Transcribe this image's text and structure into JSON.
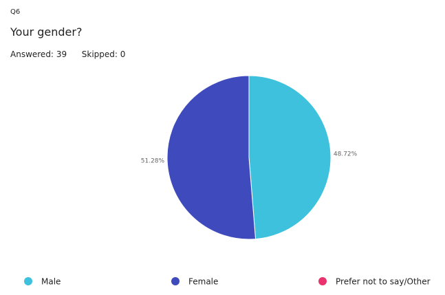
{
  "header": {
    "question_number": "Q6",
    "question": "Your gender?",
    "answered_label": "Answered:",
    "answered": 39,
    "skipped_label": "Skipped:",
    "skipped": 0
  },
  "chart_data": {
    "type": "pie",
    "categories": [
      "Male",
      "Female",
      "Prefer not to say/Other"
    ],
    "values": [
      48.72,
      51.28,
      0
    ],
    "value_labels": [
      "48.72%",
      "51.28%",
      null
    ],
    "colors": [
      "#3dc1dc",
      "#3f4bbd",
      "#e8336e"
    ],
    "legend": "bottom"
  }
}
